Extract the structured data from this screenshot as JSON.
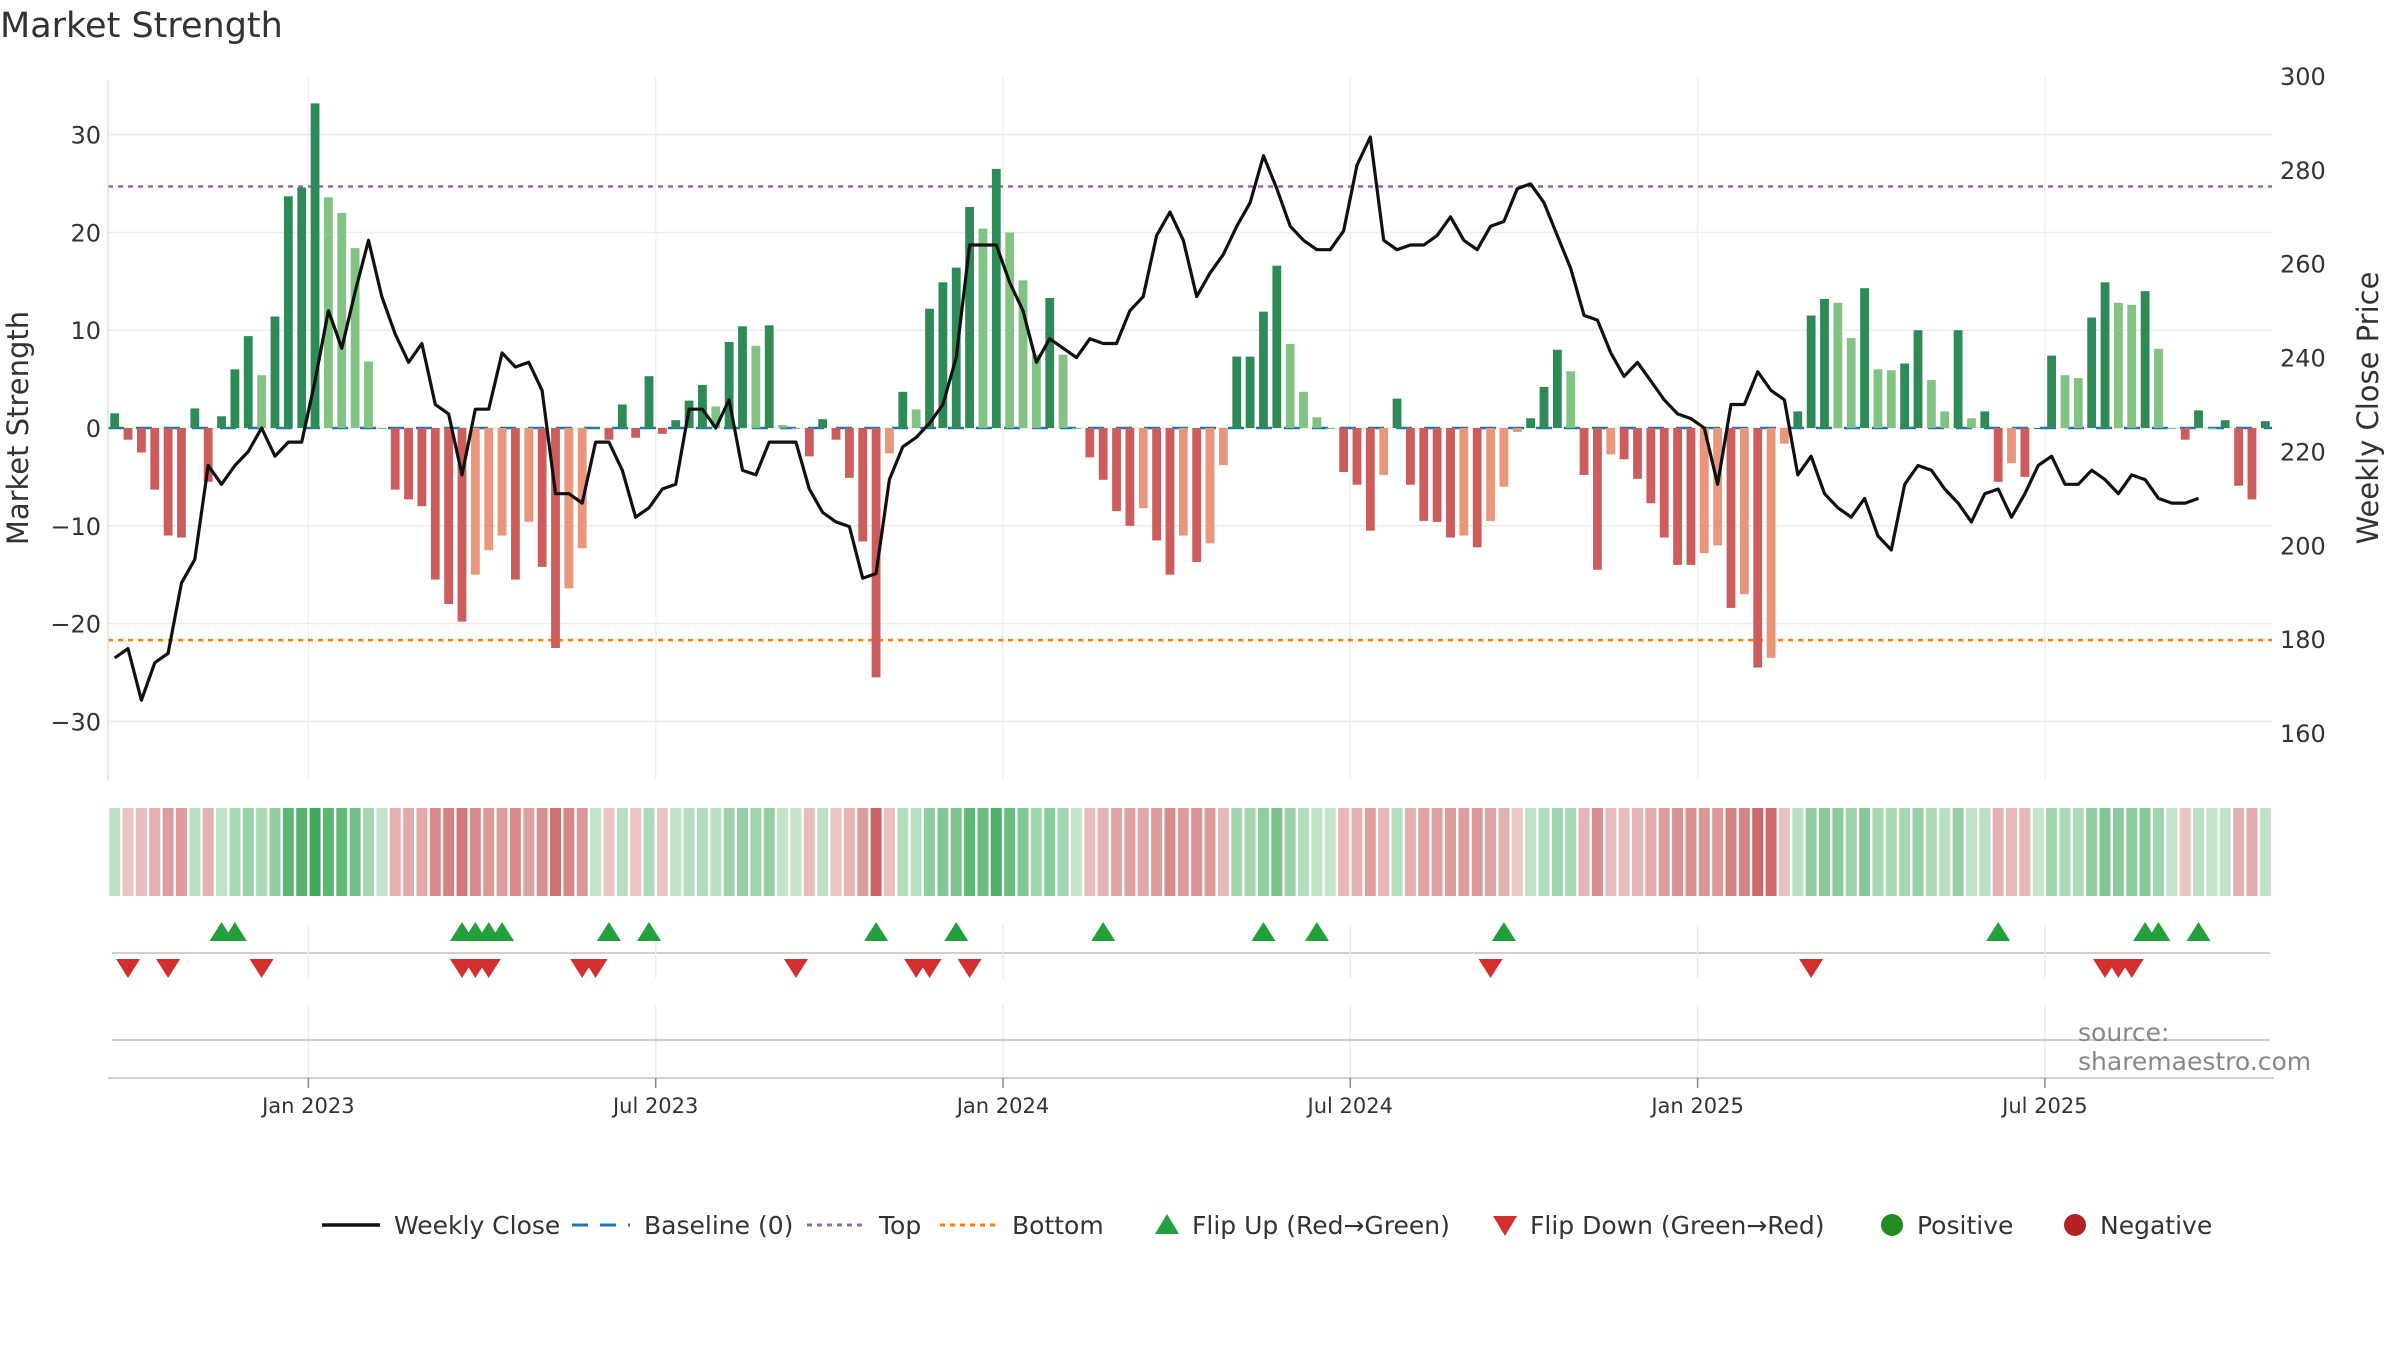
{
  "title": "Market Strength",
  "source": "source: sharemaestro.com",
  "colors": {
    "strong_green": "#2e8b57",
    "light_green": "#82c384",
    "strong_red": "#cd5c5c",
    "light_red": "#e9967a",
    "line": "#111111",
    "baseline": "#1f77b4",
    "top": "#9467bd",
    "bottom": "#ff7f0e",
    "up_marker": "#22a03a",
    "down_marker": "#d32f2f",
    "positive": "#228b22",
    "negative": "#b22222"
  },
  "chart_data": {
    "type": "bar",
    "title": "Market Strength",
    "ylabel_left": "Market Strength",
    "ylabel_right": "Weekly Close Price",
    "ylim_left": [
      -36,
      36
    ],
    "ylim_right": [
      150,
      300
    ],
    "yticks_left": [
      30,
      20,
      10,
      0,
      -10,
      -20,
      -30
    ],
    "yticks_left_labels": [
      "30",
      "20",
      "10",
      "0",
      "−10",
      "−20",
      "−30"
    ],
    "yticks_right": [
      300,
      280,
      260,
      240,
      220,
      200,
      180,
      160
    ],
    "x_ticks": [
      {
        "label": "Jan 2023",
        "week": 15
      },
      {
        "label": "Jul 2023",
        "week": 41
      },
      {
        "label": "Jan 2024",
        "week": 67
      },
      {
        "label": "Jul 2024",
        "week": 93
      },
      {
        "label": "Jan 2025",
        "week": 119
      },
      {
        "label": "Jul 2025",
        "week": 145
      }
    ],
    "top_level": 24.7,
    "bottom_level": -21.7,
    "baseline": 0,
    "strength": [
      1.5,
      -1.2,
      -2.5,
      -6.3,
      -11,
      -11.2,
      2,
      -5.5,
      1.2,
      6,
      9.4,
      5.4,
      11.4,
      23.7,
      24.6,
      33.2,
      23.6,
      22,
      18.4,
      6.8,
      0,
      -6.3,
      -7.3,
      -8,
      -15.5,
      -18,
      -19.8,
      -15,
      -12.5,
      -11,
      -15.5,
      -9.6,
      -14.2,
      -22.5,
      -16.4,
      -12.3,
      0,
      -1.2,
      2.4,
      -1,
      5.3,
      -0.6,
      0.8,
      2.8,
      4.4,
      2.2,
      8.8,
      10.4,
      8.4,
      10.5,
      0.3,
      0,
      -2.9,
      0.9,
      -1.2,
      -5.1,
      -11.6,
      -25.5,
      -2.6,
      3.7,
      1.9,
      12.2,
      14.9,
      16.4,
      22.6,
      20.4,
      26.5,
      20,
      15.1,
      7.5,
      13.3,
      7.5,
      0,
      -3,
      -5.3,
      -8.5,
      -10,
      -8.2,
      -11.5,
      -15,
      -11,
      -13.7,
      -11.8,
      -3.8,
      7.3,
      7.3,
      11.9,
      16.6,
      8.6,
      3.7,
      1.1,
      0,
      -4.5,
      -5.8,
      -10.5,
      -4.8,
      3,
      -5.8,
      -9.5,
      -9.6,
      -11.2,
      -11,
      -12.2,
      -9.5,
      -6,
      -0.4,
      1,
      4.2,
      8,
      5.8,
      -4.8,
      -14.5,
      -2.7,
      -3.2,
      -5.2,
      -7.7,
      -11.2,
      -14,
      -14,
      -12.8,
      -12,
      -18.4,
      -17,
      -24.5,
      -23.5,
      -1.6,
      1.7,
      11.5,
      13.2,
      12.8,
      9.2,
      14.3,
      6,
      5.9,
      6.6,
      10,
      4.9,
      1.7,
      10,
      1,
      1.7,
      -5.5,
      -3.6,
      -5,
      0,
      7.4,
      5.4,
      5.1,
      11.3,
      14.9,
      12.8,
      12.6,
      14,
      8.1,
      0,
      -1.2,
      1.8,
      0,
      0.8,
      -5.9,
      -7.3,
      0.7
    ],
    "weekly_close": [
      176,
      178,
      167,
      175,
      177,
      192,
      197,
      217,
      213,
      217,
      220,
      225,
      219,
      222,
      222,
      235,
      250,
      242,
      254,
      265,
      253,
      245,
      239,
      243,
      230,
      228,
      215,
      229,
      229,
      241,
      238,
      239,
      233,
      211,
      211,
      209,
      222,
      222,
      216,
      206,
      208,
      212,
      213,
      229,
      229,
      225,
      231,
      216,
      215,
      222,
      222,
      222,
      212,
      207,
      205,
      204,
      193,
      194,
      214,
      221,
      223,
      226,
      230,
      240,
      264,
      264,
      264,
      256,
      250,
      239,
      244,
      242,
      240,
      244,
      243,
      243,
      250,
      253,
      266,
      271,
      265,
      253,
      258,
      262,
      268,
      273,
      283,
      276,
      268,
      265,
      263,
      263,
      267,
      281,
      287,
      265,
      263,
      264,
      264,
      266,
      270,
      265,
      263,
      268,
      269,
      276,
      277,
      273,
      266,
      259,
      249,
      248,
      241,
      236,
      239,
      235,
      231,
      228,
      227,
      225,
      213,
      230,
      230,
      237,
      233,
      231,
      215,
      219,
      211,
      208,
      206,
      210,
      202,
      199,
      213,
      217,
      216,
      212,
      209,
      205,
      211,
      212,
      206,
      211,
      217,
      219,
      213,
      213,
      216,
      214,
      211,
      215,
      214,
      210,
      209,
      209,
      210
    ],
    "flip_up_weeks": [
      8,
      9,
      26,
      27,
      28,
      29,
      37,
      40,
      57,
      63,
      74,
      86,
      90,
      104,
      141,
      152,
      153,
      156
    ],
    "flip_down_weeks": [
      1,
      4,
      11,
      26,
      27,
      28,
      35,
      36,
      51,
      60,
      61,
      64,
      103,
      127,
      149,
      150,
      151
    ],
    "legend": [
      {
        "kind": "line",
        "label": "Weekly Close",
        "color": "#111111"
      },
      {
        "kind": "dash",
        "label": "Baseline (0)",
        "color": "#1f77b4"
      },
      {
        "kind": "dot",
        "label": "Top",
        "color": "#9467bd"
      },
      {
        "kind": "dot",
        "label": "Bottom",
        "color": "#ff7f0e"
      },
      {
        "kind": "up",
        "label": "Flip Up (Red→Green)",
        "color": "#22a03a"
      },
      {
        "kind": "down",
        "label": "Flip Down (Green→Red)",
        "color": "#d32f2f"
      },
      {
        "kind": "circle",
        "label": "Positive",
        "color": "#228b22"
      },
      {
        "kind": "circle",
        "label": "Negative",
        "color": "#b22222"
      }
    ]
  }
}
